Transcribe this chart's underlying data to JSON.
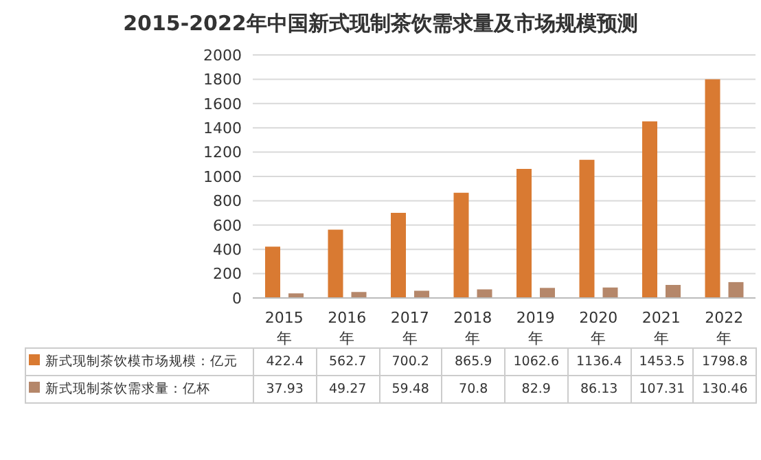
{
  "chart_data": {
    "type": "bar",
    "title": "2015-2022年中国新式现制茶饮需求量及市场规模预测",
    "categories": [
      "2015年",
      "2016年",
      "2017年",
      "2018年",
      "2019年",
      "2020年",
      "2021年",
      "2022年"
    ],
    "series": [
      {
        "name": "新式现制茶饮模市场规模：亿元",
        "color": "#d97a32",
        "values": [
          422.4,
          562.7,
          700.2,
          865.9,
          1062.6,
          1136.4,
          1453.5,
          1798.8
        ]
      },
      {
        "name": "新式现制茶饮需求量：亿杯",
        "color": "#b5876a",
        "values": [
          37.93,
          49.27,
          59.48,
          70.8,
          82.9,
          86.13,
          107.31,
          130.46
        ]
      }
    ],
    "ylim": [
      0,
      2000
    ],
    "yticks": [
      0,
      200,
      400,
      600,
      800,
      1000,
      1200,
      1400,
      1600,
      1800,
      2000
    ],
    "grid": "y",
    "legend": "bottom",
    "data_labels": true
  }
}
